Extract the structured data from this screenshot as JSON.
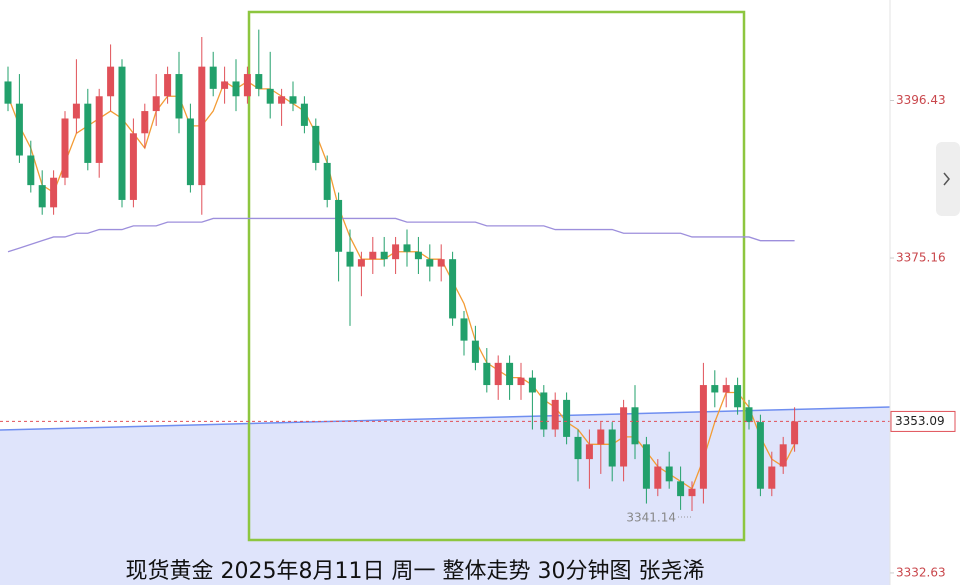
{
  "chart_data": {
    "type": "candlestick",
    "title": "现货黄金 2025年8月11日 周一 整体走势 30分钟图 张尧浠",
    "ylim": [
      3331,
      3410
    ],
    "yticks": [
      3396.43,
      3375.16,
      3332.63
    ],
    "last_price": 3353.09,
    "annotation": "3341.14",
    "up_color": "#e05058",
    "down_color": "#22a06b",
    "candles": [
      {
        "open": 3399,
        "high": 3401,
        "low": 3395,
        "close": 3396
      },
      {
        "open": 3396,
        "high": 3400,
        "low": 3388,
        "close": 3389
      },
      {
        "open": 3389,
        "high": 3391,
        "low": 3384,
        "close": 3385
      },
      {
        "open": 3385,
        "high": 3387,
        "low": 3381,
        "close": 3382
      },
      {
        "open": 3382,
        "high": 3387,
        "low": 3381,
        "close": 3386
      },
      {
        "open": 3386,
        "high": 3395,
        "low": 3385,
        "close": 3394
      },
      {
        "open": 3394,
        "high": 3402,
        "low": 3392,
        "close": 3396
      },
      {
        "open": 3396,
        "high": 3398,
        "low": 3387,
        "close": 3388
      },
      {
        "open": 3388,
        "high": 3398,
        "low": 3386,
        "close": 3397
      },
      {
        "open": 3397,
        "high": 3404,
        "low": 3395,
        "close": 3401
      },
      {
        "open": 3401,
        "high": 3402,
        "low": 3382,
        "close": 3383
      },
      {
        "open": 3383,
        "high": 3394,
        "low": 3382,
        "close": 3392
      },
      {
        "open": 3392,
        "high": 3396,
        "low": 3390,
        "close": 3395
      },
      {
        "open": 3395,
        "high": 3400,
        "low": 3393,
        "close": 3397
      },
      {
        "open": 3397,
        "high": 3401,
        "low": 3396,
        "close": 3400
      },
      {
        "open": 3400,
        "high": 3403,
        "low": 3392,
        "close": 3394
      },
      {
        "open": 3394,
        "high": 3396,
        "low": 3384,
        "close": 3385
      },
      {
        "open": 3385,
        "high": 3405,
        "low": 3381,
        "close": 3401
      },
      {
        "open": 3401,
        "high": 3403,
        "low": 3397,
        "close": 3398
      },
      {
        "open": 3398,
        "high": 3401,
        "low": 3396,
        "close": 3399
      },
      {
        "open": 3399,
        "high": 3402,
        "low": 3395,
        "close": 3397
      },
      {
        "open": 3397,
        "high": 3401,
        "low": 3396,
        "close": 3400
      },
      {
        "open": 3400,
        "high": 3406,
        "low": 3397,
        "close": 3398
      },
      {
        "open": 3398,
        "high": 3403,
        "low": 3394,
        "close": 3396
      },
      {
        "open": 3396,
        "high": 3398,
        "low": 3393,
        "close": 3397
      },
      {
        "open": 3397,
        "high": 3399,
        "low": 3395,
        "close": 3396
      },
      {
        "open": 3396,
        "high": 3397,
        "low": 3392,
        "close": 3393
      },
      {
        "open": 3393,
        "high": 3394,
        "low": 3387,
        "close": 3388
      },
      {
        "open": 3388,
        "high": 3389,
        "low": 3382,
        "close": 3383
      },
      {
        "open": 3383,
        "high": 3384,
        "low": 3372,
        "close": 3376
      },
      {
        "open": 3376,
        "high": 3379,
        "low": 3366,
        "close": 3374
      },
      {
        "open": 3374,
        "high": 3376,
        "low": 3370,
        "close": 3375
      },
      {
        "open": 3375,
        "high": 3378,
        "low": 3373,
        "close": 3376
      },
      {
        "open": 3376,
        "high": 3378,
        "low": 3374,
        "close": 3375
      },
      {
        "open": 3375,
        "high": 3378,
        "low": 3373,
        "close": 3377
      },
      {
        "open": 3377,
        "high": 3379,
        "low": 3374,
        "close": 3376
      },
      {
        "open": 3376,
        "high": 3378,
        "low": 3373,
        "close": 3375
      },
      {
        "open": 3375,
        "high": 3377,
        "low": 3372,
        "close": 3374
      },
      {
        "open": 3374,
        "high": 3377,
        "low": 3372,
        "close": 3375
      },
      {
        "open": 3375,
        "high": 3376,
        "low": 3366,
        "close": 3367
      },
      {
        "open": 3367,
        "high": 3368,
        "low": 3362,
        "close": 3364
      },
      {
        "open": 3364,
        "high": 3366,
        "low": 3360,
        "close": 3361
      },
      {
        "open": 3361,
        "high": 3363,
        "low": 3357,
        "close": 3358
      },
      {
        "open": 3358,
        "high": 3362,
        "low": 3356,
        "close": 3361
      },
      {
        "open": 3361,
        "high": 3362,
        "low": 3356,
        "close": 3358
      },
      {
        "open": 3358,
        "high": 3361,
        "low": 3356,
        "close": 3359
      },
      {
        "open": 3359,
        "high": 3360,
        "low": 3352,
        "close": 3357
      },
      {
        "open": 3357,
        "high": 3358,
        "low": 3351,
        "close": 3352
      },
      {
        "open": 3352,
        "high": 3357,
        "low": 3351,
        "close": 3356
      },
      {
        "open": 3356,
        "high": 3357,
        "low": 3350,
        "close": 3351
      },
      {
        "open": 3351,
        "high": 3352,
        "low": 3345,
        "close": 3348
      },
      {
        "open": 3348,
        "high": 3352,
        "low": 3344,
        "close": 3350
      },
      {
        "open": 3350,
        "high": 3353,
        "low": 3346,
        "close": 3352
      },
      {
        "open": 3352,
        "high": 3353,
        "low": 3345,
        "close": 3347
      },
      {
        "open": 3347,
        "high": 3356,
        "low": 3345,
        "close": 3355
      },
      {
        "open": 3355,
        "high": 3358,
        "low": 3348,
        "close": 3350
      },
      {
        "open": 3350,
        "high": 3351,
        "low": 3342,
        "close": 3344
      },
      {
        "open": 3344,
        "high": 3348,
        "low": 3343,
        "close": 3347
      },
      {
        "open": 3347,
        "high": 3349,
        "low": 3344,
        "close": 3345
      },
      {
        "open": 3345,
        "high": 3347,
        "low": 3341.14,
        "close": 3343
      },
      {
        "open": 3343,
        "high": 3345,
        "low": 3341,
        "close": 3344
      },
      {
        "open": 3344,
        "high": 3361,
        "low": 3342,
        "close": 3358
      },
      {
        "open": 3358,
        "high": 3360,
        "low": 3355,
        "close": 3357
      },
      {
        "open": 3357,
        "high": 3359,
        "low": 3355,
        "close": 3358
      },
      {
        "open": 3358,
        "high": 3359,
        "low": 3354,
        "close": 3355
      },
      {
        "open": 3355,
        "high": 3356,
        "low": 3352,
        "close": 3353
      },
      {
        "open": 3353,
        "high": 3354,
        "low": 3343,
        "close": 3344
      },
      {
        "open": 3344,
        "high": 3349,
        "low": 3343,
        "close": 3347
      },
      {
        "open": 3347,
        "high": 3351,
        "low": 3346,
        "close": 3350
      },
      {
        "open": 3350,
        "high": 3355,
        "low": 3349,
        "close": 3353.09
      }
    ],
    "lines": [
      {
        "color": "#f39c35",
        "values": [
          3397,
          3393,
          3390,
          3385,
          3384,
          3388,
          3392,
          3393,
          3394,
          3395,
          3394,
          3392,
          3390,
          3395,
          3397,
          3397,
          3393,
          3393,
          3395,
          3399,
          3398,
          3399,
          3398,
          3398,
          3397,
          3396,
          3395,
          3392,
          3388,
          3382,
          3378,
          3375,
          3375,
          3375,
          3376,
          3376,
          3376,
          3375,
          3375,
          3372,
          3369,
          3364,
          3361,
          3360,
          3359,
          3359,
          3358,
          3356,
          3355,
          3353,
          3352,
          3350,
          3350,
          3350,
          3351,
          3351,
          3349,
          3347,
          3346,
          3345,
          3344,
          3348,
          3353,
          3357,
          3357,
          3355,
          3351,
          3348,
          3347,
          3350
        ]
      },
      {
        "color": "#9d8fdc",
        "values": [
          3376,
          3376.5,
          3377,
          3377.5,
          3378,
          3378,
          3378.5,
          3378.5,
          3379,
          3379,
          3379,
          3379.5,
          3379.5,
          3379.5,
          3380,
          3380,
          3380,
          3380,
          3380.5,
          3380.5,
          3380.5,
          3380.5,
          3380.5,
          3380.5,
          3380.5,
          3380.5,
          3380.5,
          3380.5,
          3380.5,
          3380.5,
          3380.5,
          3380.5,
          3380.5,
          3380.5,
          3380.5,
          3380,
          3380,
          3380,
          3380,
          3380,
          3380,
          3380,
          3379.5,
          3379.5,
          3379.5,
          3379.5,
          3379.5,
          3379.5,
          3379,
          3379,
          3379,
          3379,
          3379,
          3379,
          3378.5,
          3378.5,
          3378.5,
          3378.5,
          3378.5,
          3378.5,
          3378,
          3378,
          3378,
          3378,
          3378,
          3378,
          3377.5,
          3377.5,
          3377.5,
          3377.5
        ]
      }
    ]
  }
}
